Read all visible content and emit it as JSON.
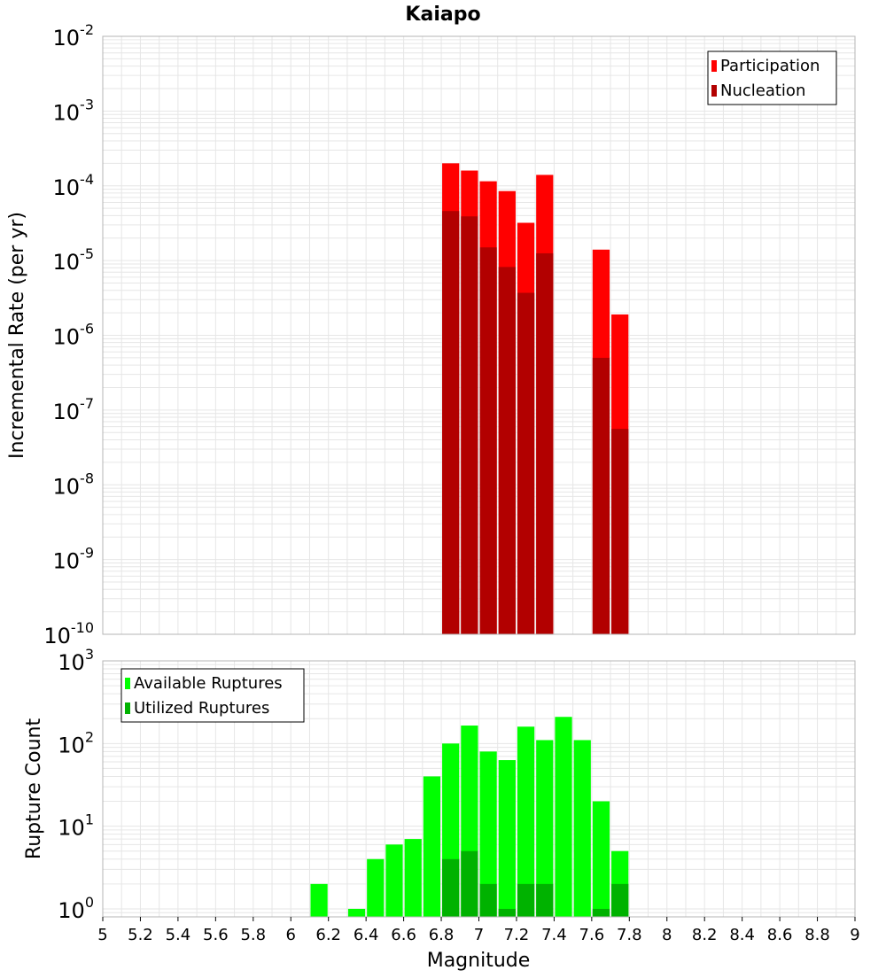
{
  "title": "Kaiapo",
  "xlabel": "Magnitude",
  "x_tick_labels": [
    "5",
    "5.2",
    "5.4",
    "5.6",
    "5.8",
    "6",
    "6.2",
    "6.4",
    "6.6",
    "6.8",
    "7",
    "7.2",
    "7.4",
    "7.6",
    "7.8",
    "8",
    "8.2",
    "8.4",
    "8.6",
    "8.8",
    "9"
  ],
  "colors": {
    "participation": "#ff0000",
    "nucleation": "#b20000",
    "available": "#00ff00",
    "utilized": "#00b200",
    "grid": "#e6e6e6",
    "frame": "#b4b4b4"
  },
  "chart_data": [
    {
      "type": "bar",
      "title": "Kaiapo",
      "xlabel": "Magnitude",
      "ylabel": "Incremental Rate (per yr)",
      "y_scale": "log",
      "xlim": [
        5,
        9
      ],
      "ylim": [
        1e-10,
        0.01
      ],
      "y_tick_exponents": [
        -10,
        -9,
        -8,
        -7,
        -6,
        -5,
        -4,
        -3,
        -2
      ],
      "legend_position": "top-right",
      "grid": true,
      "bin_width": 0.1,
      "x": [
        6.85,
        6.95,
        7.05,
        7.15,
        7.25,
        7.35,
        7.65,
        7.75
      ],
      "series": [
        {
          "name": "Participation",
          "values": [
            0.0002,
            0.00016,
            0.000115,
            8.5e-05,
            3.2e-05,
            0.00014,
            1.4e-05,
            1.9e-06
          ]
        },
        {
          "name": "Nucleation",
          "values": [
            4.6e-05,
            3.9e-05,
            1.5e-05,
            8.2e-06,
            3.7e-06,
            1.25e-05,
            5e-07,
            5.6e-08
          ]
        }
      ]
    },
    {
      "type": "bar",
      "xlabel": "Magnitude",
      "ylabel": "Rupture Count",
      "y_scale": "log",
      "xlim": [
        5,
        9
      ],
      "ylim": [
        0.8,
        1000
      ],
      "y_tick_exponents": [
        0,
        1,
        2,
        3
      ],
      "legend_position": "top-left",
      "grid": true,
      "bin_width": 0.1,
      "x": [
        6.15,
        6.25,
        6.35,
        6.45,
        6.55,
        6.65,
        6.75,
        6.85,
        6.95,
        7.05,
        7.15,
        7.25,
        7.35,
        7.45,
        7.55,
        7.65,
        7.75
      ],
      "series": [
        {
          "name": "Available Ruptures",
          "values": [
            2,
            0,
            1,
            4,
            6,
            7,
            40,
            100,
            165,
            80,
            63,
            160,
            110,
            210,
            110,
            20,
            5
          ]
        },
        {
          "name": "Utilized Ruptures",
          "values": [
            0,
            0,
            0,
            0,
            0,
            0,
            0,
            4,
            5,
            2,
            1,
            2,
            2,
            0,
            0,
            1,
            2
          ]
        }
      ]
    }
  ]
}
